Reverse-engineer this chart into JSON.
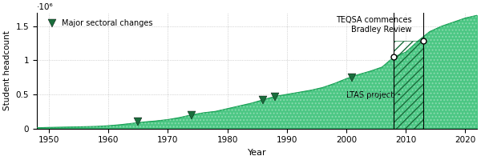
{
  "years": [
    1948,
    1950,
    1952,
    1954,
    1956,
    1958,
    1960,
    1962,
    1964,
    1966,
    1968,
    1970,
    1972,
    1974,
    1976,
    1978,
    1980,
    1982,
    1984,
    1986,
    1988,
    1990,
    1992,
    1994,
    1996,
    1998,
    2000,
    2002,
    2004,
    2006,
    2008,
    2010,
    2012,
    2014,
    2016,
    2018,
    2020,
    2022
  ],
  "headcount": [
    10000,
    15000,
    18000,
    22000,
    26000,
    30000,
    40000,
    55000,
    75000,
    95000,
    110000,
    130000,
    160000,
    200000,
    230000,
    250000,
    290000,
    330000,
    370000,
    420000,
    470000,
    500000,
    530000,
    560000,
    600000,
    660000,
    730000,
    790000,
    840000,
    900000,
    1050000,
    1120000,
    1280000,
    1420000,
    1500000,
    1560000,
    1620000,
    1660000
  ],
  "fill_color": "#2dbd6e",
  "fill_alpha": 0.85,
  "line_color": "#1a9e55",
  "triangle_years": [
    1965,
    1974,
    1986,
    1988,
    2001
  ],
  "triangle_values": [
    95000,
    200000,
    420000,
    470000,
    750000
  ],
  "triangle_color": "#1a6e3c",
  "ltas_start": 2008,
  "ltas_end": 2013,
  "bradley_year": 2008,
  "bradley_value": 1050000,
  "teqsa_year": 2013,
  "teqsa_value": 1280000,
  "xlabel": "Year",
  "ylabel": "Student headcount",
  "xlim": [
    1948,
    2022
  ],
  "ylim": [
    0,
    1700000
  ],
  "xticks": [
    1950,
    1960,
    1970,
    1980,
    1990,
    2000,
    2010,
    2020
  ],
  "yticks": [
    0,
    500000,
    1000000,
    1500000
  ],
  "ytick_labels": [
    "0",
    "0.5",
    "1",
    "1.5"
  ],
  "yexp_label": "·10⁶",
  "legend_label": "Major sectoral changes",
  "annotation_bradley": "Bradley Review",
  "annotation_teqsa": "TEQSA commences",
  "annotation_ltas": "LTAS project",
  "bg_color": "white",
  "hatch_color": "#1a6e3c",
  "hatch_pattern": "///"
}
